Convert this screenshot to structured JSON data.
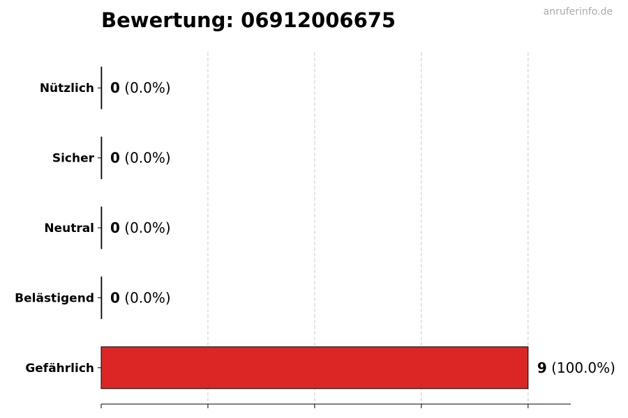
{
  "chart_data": {
    "type": "bar",
    "orientation": "horizontal",
    "title": "Bewertung: 06912006675",
    "categories": [
      "Nützlich",
      "Sicher",
      "Neutral",
      "Belästigend",
      "Gefährlich"
    ],
    "values": [
      0,
      0,
      0,
      0,
      9
    ],
    "labels": [
      "(0.0%)",
      "(0.0%)",
      "(0.0%)",
      "(0.0%)",
      "(100.0%)"
    ],
    "xlim": [
      0,
      9.9
    ],
    "xticks": [
      0,
      2.25,
      4.5,
      6.75,
      9
    ],
    "xtick_labels_shown": false,
    "grid": "x, dashed",
    "bar_color": "#dc2626",
    "edge_color": "#000000"
  },
  "watermark": "anruferinfo.de"
}
